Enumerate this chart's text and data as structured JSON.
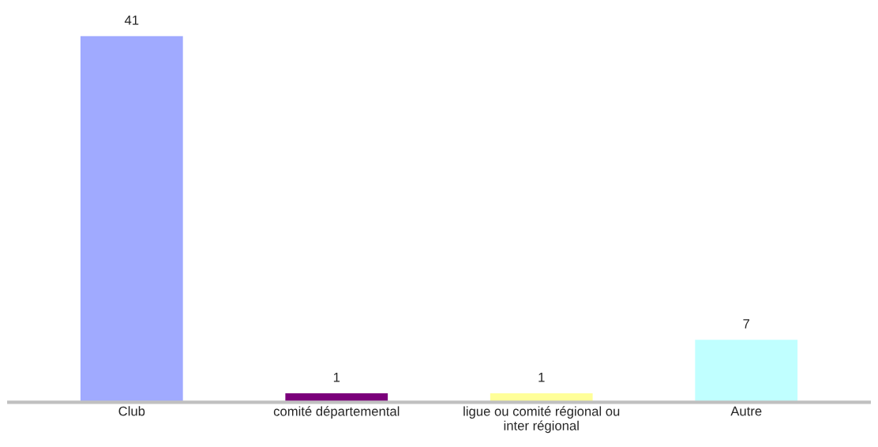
{
  "chart_data": {
    "type": "bar",
    "categories": [
      "Club",
      "comité départemental",
      "ligue ou comité régional ou inter régional",
      "Autre"
    ],
    "values": [
      41,
      1,
      1,
      7
    ],
    "colors": [
      "#a0aaff",
      "#7b007b",
      "#ffff99",
      "#c0ffff"
    ],
    "data_labels": true,
    "grid": false,
    "legend": false
  }
}
